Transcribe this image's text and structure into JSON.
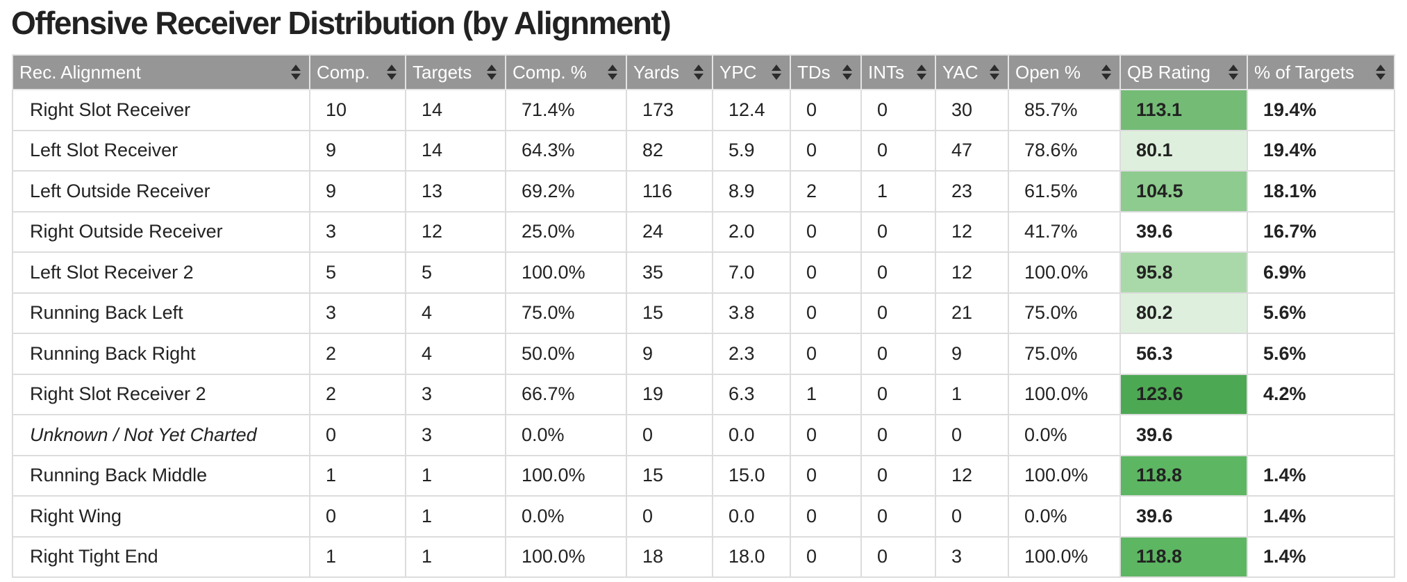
{
  "title": "Offensive Receiver Distribution (by Alignment)",
  "colors": {
    "header_bg": "#969696",
    "header_text": "#ffffff",
    "rating_green_1": "#4da853",
    "rating_green_2": "#5db662",
    "rating_green_3": "#6fbf73",
    "rating_green_4": "#8dcb8e",
    "rating_green_5": "#aad9a9",
    "rating_green_6": "#def0dd"
  },
  "columns": [
    {
      "key": "alignment",
      "label": "Rec. Alignment",
      "width": 428
    },
    {
      "key": "comp",
      "label": "Comp.",
      "width": 138
    },
    {
      "key": "targets",
      "label": "Targets",
      "width": 144
    },
    {
      "key": "comp_pct",
      "label": "Comp. %",
      "width": 174
    },
    {
      "key": "yards",
      "label": "Yards",
      "width": 124
    },
    {
      "key": "ypc",
      "label": "YPC",
      "width": 112
    },
    {
      "key": "tds",
      "label": "TDs",
      "width": 102
    },
    {
      "key": "ints",
      "label": "INTs",
      "width": 107
    },
    {
      "key": "yac",
      "label": "YAC",
      "width": 105
    },
    {
      "key": "open_pct",
      "label": "Open %",
      "width": 161
    },
    {
      "key": "qb_rating",
      "label": "QB Rating",
      "width": 183
    },
    {
      "key": "pct_targets",
      "label": "% of Targets",
      "width": 212
    }
  ],
  "rows": [
    {
      "alignment": "Right Slot Receiver",
      "comp": "10",
      "targets": "14",
      "comp_pct": "71.4%",
      "yards": "173",
      "ypc": "12.4",
      "tds": "0",
      "ints": "0",
      "yac": "30",
      "open_pct": "85.7%",
      "qb_rating": "113.1",
      "rating_color": "#74bc76",
      "pct_targets": "19.4%"
    },
    {
      "alignment": "Left Slot Receiver",
      "comp": "9",
      "targets": "14",
      "comp_pct": "64.3%",
      "yards": "82",
      "ypc": "5.9",
      "tds": "0",
      "ints": "0",
      "yac": "47",
      "open_pct": "78.6%",
      "qb_rating": "80.1",
      "rating_color": "#def0dd",
      "pct_targets": "19.4%"
    },
    {
      "alignment": "Left Outside Receiver",
      "comp": "9",
      "targets": "13",
      "comp_pct": "69.2%",
      "yards": "116",
      "ypc": "8.9",
      "tds": "2",
      "ints": "1",
      "yac": "23",
      "open_pct": "61.5%",
      "qb_rating": "104.5",
      "rating_color": "#8dcb8e",
      "pct_targets": "18.1%"
    },
    {
      "alignment": "Right Outside Receiver",
      "comp": "3",
      "targets": "12",
      "comp_pct": "25.0%",
      "yards": "24",
      "ypc": "2.0",
      "tds": "0",
      "ints": "0",
      "yac": "12",
      "open_pct": "41.7%",
      "qb_rating": "39.6",
      "rating_color": "#ffffff",
      "pct_targets": "16.7%"
    },
    {
      "alignment": "Left Slot Receiver 2",
      "comp": "5",
      "targets": "5",
      "comp_pct": "100.0%",
      "yards": "35",
      "ypc": "7.0",
      "tds": "0",
      "ints": "0",
      "yac": "12",
      "open_pct": "100.0%",
      "qb_rating": "95.8",
      "rating_color": "#aad9a9",
      "pct_targets": "6.9%"
    },
    {
      "alignment": "Running Back Left",
      "comp": "3",
      "targets": "4",
      "comp_pct": "75.0%",
      "yards": "15",
      "ypc": "3.8",
      "tds": "0",
      "ints": "0",
      "yac": "21",
      "open_pct": "75.0%",
      "qb_rating": "80.2",
      "rating_color": "#def0dd",
      "pct_targets": "5.6%"
    },
    {
      "alignment": "Running Back Right",
      "comp": "2",
      "targets": "4",
      "comp_pct": "50.0%",
      "yards": "9",
      "ypc": "2.3",
      "tds": "0",
      "ints": "0",
      "yac": "9",
      "open_pct": "75.0%",
      "qb_rating": "56.3",
      "rating_color": "#ffffff",
      "pct_targets": "5.6%"
    },
    {
      "alignment": "Right Slot Receiver 2",
      "comp": "2",
      "targets": "3",
      "comp_pct": "66.7%",
      "yards": "19",
      "ypc": "6.3",
      "tds": "1",
      "ints": "0",
      "yac": "1",
      "open_pct": "100.0%",
      "qb_rating": "123.6",
      "rating_color": "#4da853",
      "pct_targets": "4.2%"
    },
    {
      "alignment": "Unknown / Not Yet Charted",
      "italic": true,
      "comp": "0",
      "targets": "3",
      "comp_pct": "0.0%",
      "yards": "0",
      "ypc": "0.0",
      "tds": "0",
      "ints": "0",
      "yac": "0",
      "open_pct": "0.0%",
      "qb_rating": "39.6",
      "rating_color": "#ffffff",
      "pct_targets": ""
    },
    {
      "alignment": "Running Back Middle",
      "comp": "1",
      "targets": "1",
      "comp_pct": "100.0%",
      "yards": "15",
      "ypc": "15.0",
      "tds": "0",
      "ints": "0",
      "yac": "12",
      "open_pct": "100.0%",
      "qb_rating": "118.8",
      "rating_color": "#5db662",
      "pct_targets": "1.4%"
    },
    {
      "alignment": "Right Wing",
      "comp": "0",
      "targets": "1",
      "comp_pct": "0.0%",
      "yards": "0",
      "ypc": "0.0",
      "tds": "0",
      "ints": "0",
      "yac": "0",
      "open_pct": "0.0%",
      "qb_rating": "39.6",
      "rating_color": "#ffffff",
      "pct_targets": "1.4%"
    },
    {
      "alignment": "Right Tight End",
      "comp": "1",
      "targets": "1",
      "comp_pct": "100.0%",
      "yards": "18",
      "ypc": "18.0",
      "tds": "0",
      "ints": "0",
      "yac": "3",
      "open_pct": "100.0%",
      "qb_rating": "118.8",
      "rating_color": "#5db662",
      "pct_targets": "1.4%"
    }
  ]
}
